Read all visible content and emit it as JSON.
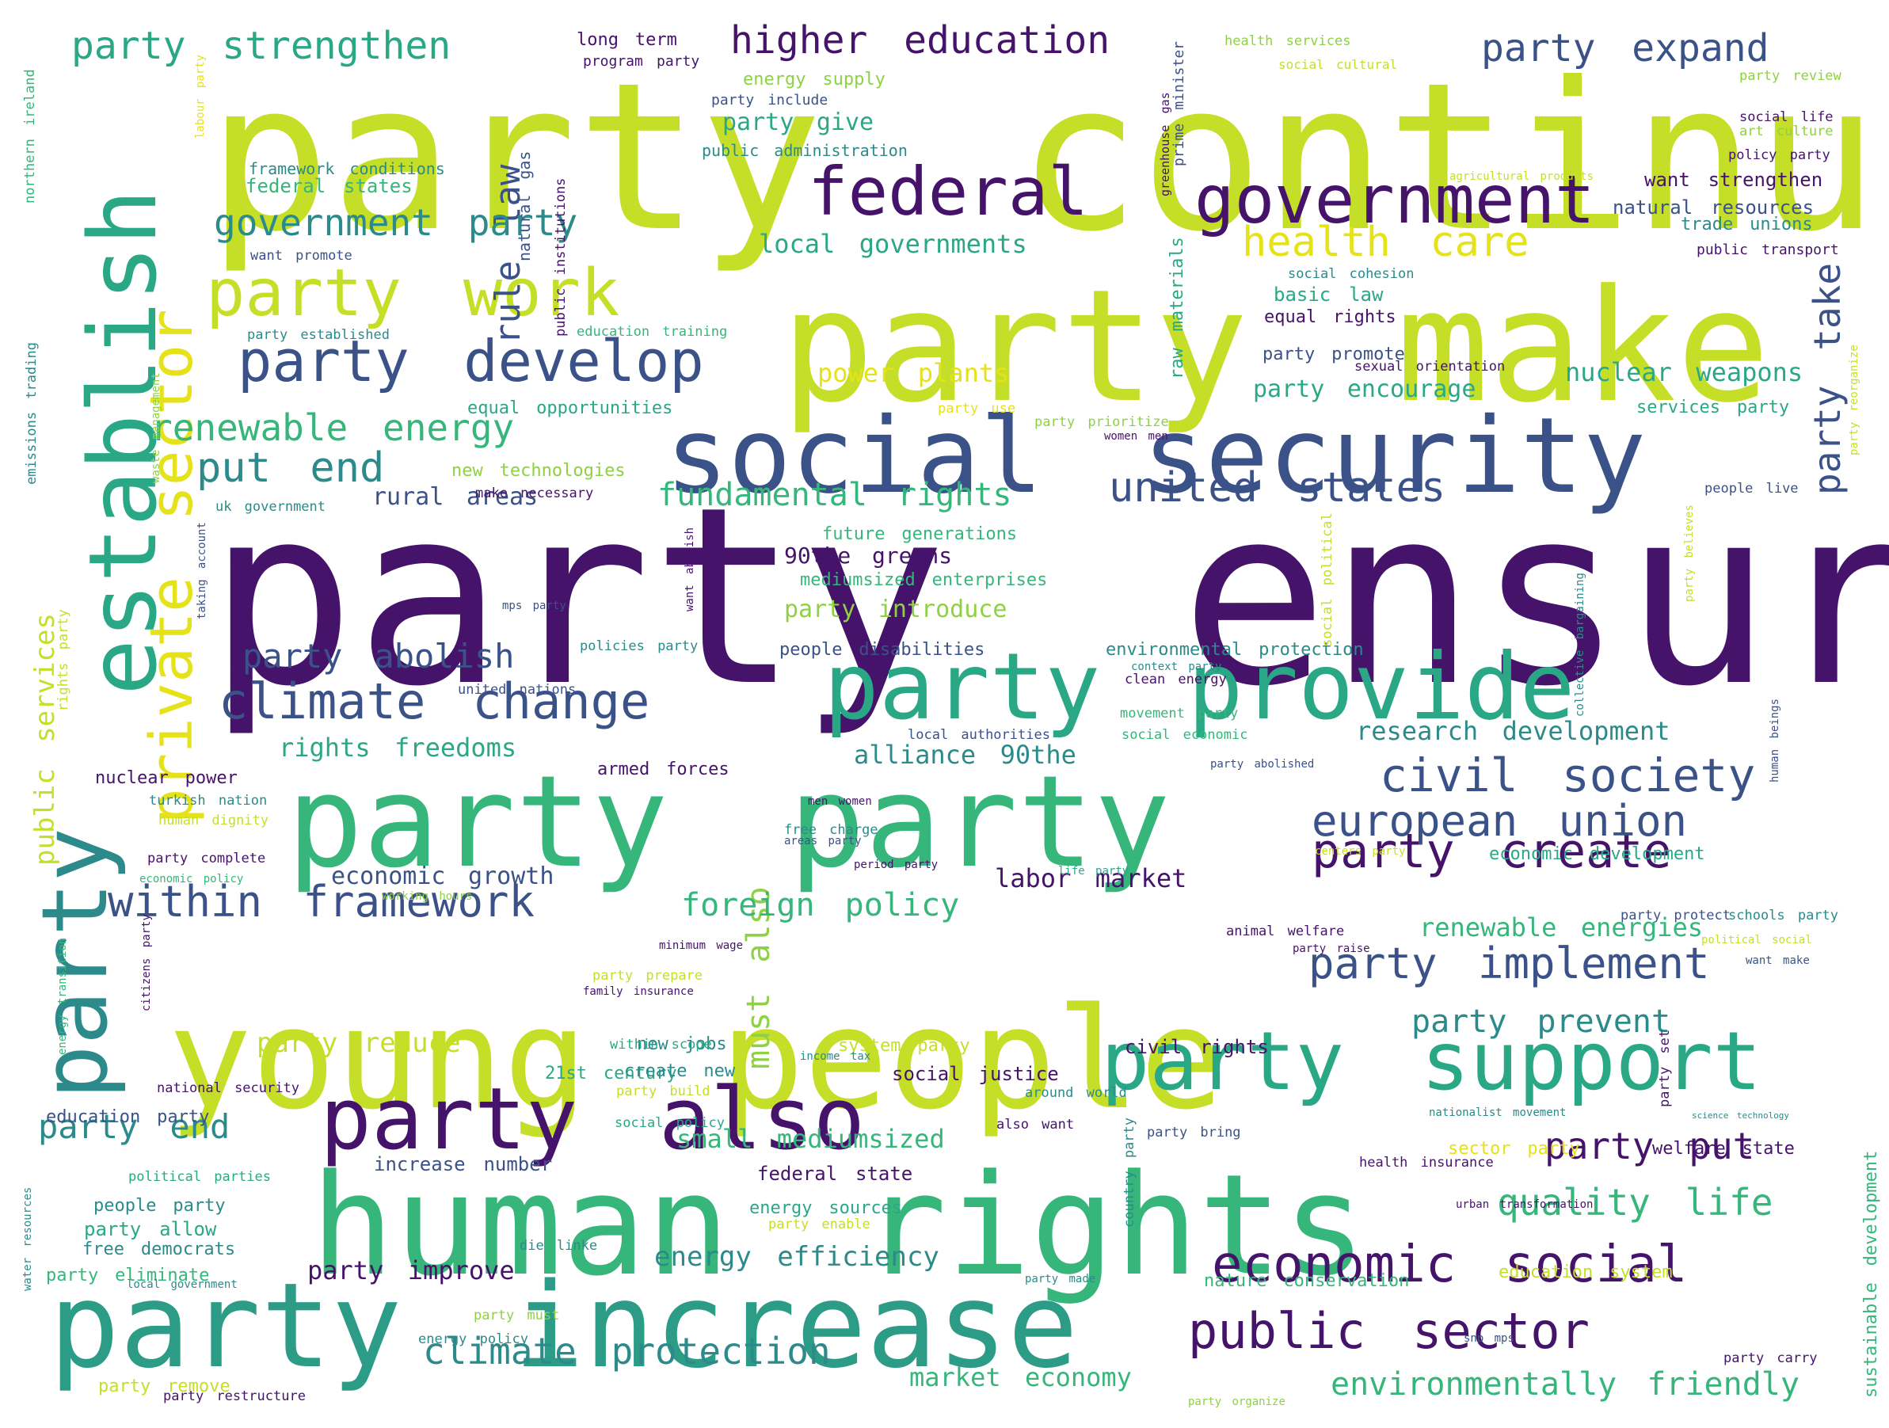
{
  "palette": {
    "dark_purple": "#46136b",
    "indigo": "#3b5288",
    "teal": "#2c8a8a",
    "green": "#36b67a",
    "light_green": "#8fd144",
    "yellow_green": "#c5df28",
    "yellow": "#e6e21a"
  },
  "words": [
    {
      "text": "party ensure",
      "color": "#46136b"
    },
    {
      "text": "party continue",
      "color": "#c5df28"
    },
    {
      "text": "party make",
      "color": "#c5df28"
    },
    {
      "text": "young people",
      "color": "#c5df28"
    },
    {
      "text": "human rights",
      "color": "#36b67a"
    },
    {
      "text": "party party",
      "color": "#36b67a"
    },
    {
      "text": "social security",
      "color": "#3b5288"
    },
    {
      "text": "party increase",
      "color": "#2c9c87"
    },
    {
      "text": "establish",
      "color": "#2aa886"
    },
    {
      "text": "party",
      "color": "#2c8a8a"
    },
    {
      "text": "private sector",
      "color": "#e6e21a"
    },
    {
      "text": "party provide",
      "color": "#2aa886"
    },
    {
      "text": "party support",
      "color": "#2aa886"
    },
    {
      "text": "party also",
      "color": "#46136b"
    },
    {
      "text": "federal",
      "color": "#46136b"
    },
    {
      "text": "government",
      "color": "#46136b"
    },
    {
      "text": "party work",
      "color": "#c5df28"
    },
    {
      "text": "party develop",
      "color": "#3b5288"
    },
    {
      "text": "climate change",
      "color": "#3b5288"
    },
    {
      "text": "economic social",
      "color": "#46136b"
    },
    {
      "text": "public sector",
      "color": "#46136b"
    },
    {
      "text": "party create",
      "color": "#46136b"
    },
    {
      "text": "party implement",
      "color": "#3b5288"
    },
    {
      "text": "within framework",
      "color": "#3b5288"
    },
    {
      "text": "civil society",
      "color": "#3b5288"
    },
    {
      "text": "european union",
      "color": "#3b5288"
    },
    {
      "text": "united states",
      "color": "#3b5288"
    },
    {
      "text": "renewable energy",
      "color": "#36b67a"
    },
    {
      "text": "health care",
      "color": "#e6e21a"
    },
    {
      "text": "climate protection",
      "color": "#2c8a8a"
    },
    {
      "text": "environmentally friendly",
      "color": "#36b67a"
    },
    {
      "text": "put end",
      "color": "#2c8a8a"
    },
    {
      "text": "party abolish",
      "color": "#3b5288"
    },
    {
      "text": "rule law",
      "color": "#3b5288"
    },
    {
      "text": "must also",
      "color": "#8fd144"
    },
    {
      "text": "party take",
      "color": "#3b5288"
    },
    {
      "text": "party strengthen",
      "color": "#2aa886"
    },
    {
      "text": "higher education",
      "color": "#46136b"
    },
    {
      "text": "party expand",
      "color": "#3b5288"
    },
    {
      "text": "government party",
      "color": "#2c8a8a"
    },
    {
      "text": "fundamental rights",
      "color": "#36b67a"
    },
    {
      "text": "foreign policy",
      "color": "#36b67a"
    },
    {
      "text": "quality life",
      "color": "#36b67a"
    },
    {
      "text": "party put",
      "color": "#46136b"
    },
    {
      "text": "party end",
      "color": "#2c8a8a"
    },
    {
      "text": "party prevent",
      "color": "#2c8a8a"
    },
    {
      "text": "renewable energies",
      "color": "#36b67a"
    },
    {
      "text": "party reduce",
      "color": "#c5df28"
    },
    {
      "text": "public services",
      "color": "#c5df28"
    },
    {
      "text": "long term",
      "color": "#46136b"
    },
    {
      "text": "rights freedoms",
      "color": "#2aa886"
    },
    {
      "text": "party improve",
      "color": "#46136b"
    },
    {
      "text": "energy efficiency",
      "color": "#2c8a8a"
    },
    {
      "text": "market economy",
      "color": "#36b67a"
    },
    {
      "text": "economic growth",
      "color": "#3b5288"
    },
    {
      "text": "alliance 90the",
      "color": "#2c8a8a"
    },
    {
      "text": "small mediumsized",
      "color": "#36b67a"
    },
    {
      "text": "research development",
      "color": "#2c8a8a"
    },
    {
      "text": "labor market",
      "color": "#46136b"
    },
    {
      "text": "local governments",
      "color": "#2aa886"
    },
    {
      "text": "rural areas",
      "color": "#3b5288"
    },
    {
      "text": "party introduce",
      "color": "#8fd144"
    },
    {
      "text": "90the greens",
      "color": "#46136b"
    },
    {
      "text": "power plants",
      "color": "#e6e21a"
    },
    {
      "text": "nuclear weapons",
      "color": "#2aa886"
    },
    {
      "text": "party encourage",
      "color": "#2aa886"
    },
    {
      "text": "party give",
      "color": "#2aa886"
    },
    {
      "text": "program party",
      "color": "#46136b"
    },
    {
      "text": "energy supply",
      "color": "#8fd144"
    },
    {
      "text": "party include",
      "color": "#3b5288"
    },
    {
      "text": "public administration",
      "color": "#2c8a8a"
    },
    {
      "text": "federal states",
      "color": "#36b67a"
    },
    {
      "text": "framework conditions",
      "color": "#2c8a8a"
    },
    {
      "text": "want promote",
      "color": "#3b5288"
    },
    {
      "text": "want strengthen",
      "color": "#46136b"
    },
    {
      "text": "natural resources",
      "color": "#3b5288"
    },
    {
      "text": "trade unions",
      "color": "#2c8a8a"
    },
    {
      "text": "public transport",
      "color": "#46136b"
    },
    {
      "text": "health services",
      "color": "#8fd144"
    },
    {
      "text": "social cultural",
      "color": "#c5df28"
    },
    {
      "text": "party review",
      "color": "#8fd144"
    },
    {
      "text": "social life",
      "color": "#46136b"
    },
    {
      "text": "art culture",
      "color": "#8fd144"
    },
    {
      "text": "policy party",
      "color": "#46136b"
    },
    {
      "text": "agricultural products",
      "color": "#c5df28"
    },
    {
      "text": "social cohesion",
      "color": "#2c8a8a"
    },
    {
      "text": "basic law",
      "color": "#2aa886"
    },
    {
      "text": "equal rights",
      "color": "#46136b"
    },
    {
      "text": "party promote",
      "color": "#3b5288"
    },
    {
      "text": "sexual orientation",
      "color": "#46136b"
    },
    {
      "text": "services party",
      "color": "#2aa886"
    },
    {
      "text": "people live",
      "color": "#3b5288"
    },
    {
      "text": "party established",
      "color": "#2c8a8a"
    },
    {
      "text": "education training",
      "color": "#36b67a"
    },
    {
      "text": "equal opportunities",
      "color": "#2aa886"
    },
    {
      "text": "party use",
      "color": "#e6e21a"
    },
    {
      "text": "party prioritize",
      "color": "#8fd144"
    },
    {
      "text": "women men",
      "color": "#46136b"
    },
    {
      "text": "new technologies",
      "color": "#8fd144"
    },
    {
      "text": "make necessary",
      "color": "#46136b"
    },
    {
      "text": "uk government",
      "color": "#2c8a8a"
    },
    {
      "text": "future generations",
      "color": "#36b67a"
    },
    {
      "text": "mediumsized enterprises",
      "color": "#36b67a"
    },
    {
      "text": "mps party",
      "color": "#3b5288"
    },
    {
      "text": "policies party",
      "color": "#2c8a8a"
    },
    {
      "text": "people disabilities",
      "color": "#3b5288"
    },
    {
      "text": "environmental protection",
      "color": "#2c8a8a"
    },
    {
      "text": "context party",
      "color": "#2c8a8a"
    },
    {
      "text": "united nations",
      "color": "#3b5288"
    },
    {
      "text": "clean energy",
      "color": "#46136b"
    },
    {
      "text": "movement party",
      "color": "#36b67a"
    },
    {
      "text": "local authorities",
      "color": "#3b5288"
    },
    {
      "text": "social economic",
      "color": "#36b67a"
    },
    {
      "text": "armed forces",
      "color": "#46136b"
    },
    {
      "text": "party abolished",
      "color": "#3b5288"
    },
    {
      "text": "nuclear power",
      "color": "#46136b"
    },
    {
      "text": "turkish nation",
      "color": "#2c8a8a"
    },
    {
      "text": "human dignity",
      "color": "#c5df28"
    },
    {
      "text": "men women",
      "color": "#46136b"
    },
    {
      "text": "free charge",
      "color": "#2c8a8a"
    },
    {
      "text": "areas party",
      "color": "#3b5288"
    },
    {
      "text": "period party",
      "color": "#46136b"
    },
    {
      "text": "party complete",
      "color": "#46136b"
    },
    {
      "text": "economic policy",
      "color": "#36b67a"
    },
    {
      "text": "working hours",
      "color": "#8fd144"
    },
    {
      "text": "life party",
      "color": "#2aa886"
    },
    {
      "text": "centers party",
      "color": "#c5df28"
    },
    {
      "text": "economic development",
      "color": "#2aa886"
    },
    {
      "text": "party protect",
      "color": "#3b5288"
    },
    {
      "text": "schools party",
      "color": "#2c8a8a"
    },
    {
      "text": "minimum wage",
      "color": "#46136b"
    },
    {
      "text": "animal welfare",
      "color": "#46136b"
    },
    {
      "text": "party raise",
      "color": "#46136b"
    },
    {
      "text": "political social",
      "color": "#c5df28"
    },
    {
      "text": "want make",
      "color": "#3b5288"
    },
    {
      "text": "party prepare",
      "color": "#c5df28"
    },
    {
      "text": "family insurance",
      "color": "#46136b"
    },
    {
      "text": "new jobs",
      "color": "#2c8a8a"
    },
    {
      "text": "within scope",
      "color": "#2aa886"
    },
    {
      "text": "system party",
      "color": "#c5df28"
    },
    {
      "text": "income tax",
      "color": "#2c8a8a"
    },
    {
      "text": "civil rights",
      "color": "#46136b"
    },
    {
      "text": "21st century",
      "color": "#2aa886"
    },
    {
      "text": "create new",
      "color": "#2c8a8a"
    },
    {
      "text": "social justice",
      "color": "#46136b"
    },
    {
      "text": "around world",
      "color": "#2c8a8a"
    },
    {
      "text": "national security",
      "color": "#46136b"
    },
    {
      "text": "party build",
      "color": "#c5df28"
    },
    {
      "text": "education party",
      "color": "#3b5288"
    },
    {
      "text": "social policy",
      "color": "#2aa886"
    },
    {
      "text": "also want",
      "color": "#46136b"
    },
    {
      "text": "nationalist movement",
      "color": "#2c8a8a"
    },
    {
      "text": "science technology",
      "color": "#2c8a8a"
    },
    {
      "text": "party bring",
      "color": "#3b5288"
    },
    {
      "text": "sector party",
      "color": "#e6e21a"
    },
    {
      "text": "welfare state",
      "color": "#46136b"
    },
    {
      "text": "increase number",
      "color": "#3b5288"
    },
    {
      "text": "health insurance",
      "color": "#46136b"
    },
    {
      "text": "political parties",
      "color": "#2aa886"
    },
    {
      "text": "federal state",
      "color": "#46136b"
    },
    {
      "text": "people party",
      "color": "#2c8a8a"
    },
    {
      "text": "energy sources",
      "color": "#2aa886"
    },
    {
      "text": "urban transformation",
      "color": "#46136b"
    },
    {
      "text": "party allow",
      "color": "#2aa886"
    },
    {
      "text": "party enable",
      "color": "#c5df28"
    },
    {
      "text": "free democrats",
      "color": "#2c8a8a"
    },
    {
      "text": "die linke",
      "color": "#2c8a8a"
    },
    {
      "text": "party eliminate",
      "color": "#36b67a"
    },
    {
      "text": "local government",
      "color": "#2c8a8a"
    },
    {
      "text": "party made",
      "color": "#2c8a8a"
    },
    {
      "text": "nature conservation",
      "color": "#36b67a"
    },
    {
      "text": "education system",
      "color": "#c5df28"
    },
    {
      "text": "party must",
      "color": "#8fd144"
    },
    {
      "text": "energy policy",
      "color": "#2c8a8a"
    },
    {
      "text": "snp mps",
      "color": "#3b5288"
    },
    {
      "text": "party carry",
      "color": "#46136b"
    },
    {
      "text": "party remove",
      "color": "#c5df28"
    },
    {
      "text": "party restructure",
      "color": "#46136b"
    },
    {
      "text": "party organize",
      "color": "#8fd144"
    },
    {
      "text": "natural gas",
      "color": "#3b5288"
    },
    {
      "text": "public institutions",
      "color": "#46136b"
    },
    {
      "text": "greenhouse gas",
      "color": "#46136b"
    },
    {
      "text": "prime minister",
      "color": "#3b5288"
    },
    {
      "text": "raw materials",
      "color": "#2aa886"
    },
    {
      "text": "labour party",
      "color": "#e6e21a"
    },
    {
      "text": "northern ireland",
      "color": "#36b67a"
    },
    {
      "text": "emissions trading",
      "color": "#2c8a8a"
    },
    {
      "text": "waste management",
      "color": "#8fd144"
    },
    {
      "text": "taking account",
      "color": "#3b5288"
    },
    {
      "text": "rights party",
      "color": "#c5df28"
    },
    {
      "text": "energy transition",
      "color": "#36b67a"
    },
    {
      "text": "citizens party",
      "color": "#46136b"
    },
    {
      "text": "water resources",
      "color": "#2c8a8a"
    },
    {
      "text": "want abolish",
      "color": "#46136b"
    },
    {
      "text": "social political",
      "color": "#c5df28"
    },
    {
      "text": "collective bargaining",
      "color": "#2c8a8a"
    },
    {
      "text": "party set",
      "color": "#46136b"
    },
    {
      "text": "country party",
      "color": "#2c8a8a"
    },
    {
      "text": "human beings",
      "color": "#3b5288"
    },
    {
      "text": "party believes",
      "color": "#c5df28"
    },
    {
      "text": "party reorganize",
      "color": "#c5df28"
    },
    {
      "text": "sustainable development",
      "color": "#36b67a"
    }
  ]
}
